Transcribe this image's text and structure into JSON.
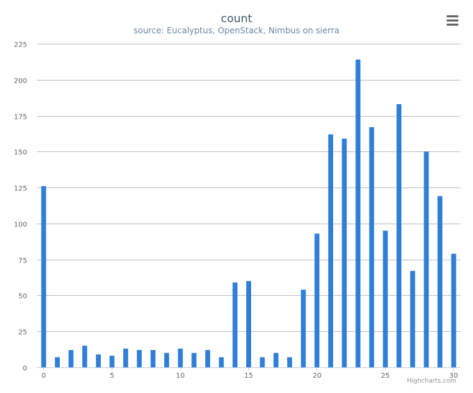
{
  "chart_data": {
    "type": "bar",
    "title": "count",
    "subtitle": "source: Eucalyptus, OpenStack, Nimbus on sierra",
    "xlabel": "",
    "ylabel": "",
    "categories": [
      0,
      1,
      2,
      3,
      4,
      5,
      6,
      7,
      8,
      9,
      10,
      11,
      12,
      13,
      14,
      15,
      16,
      17,
      18,
      19,
      20,
      21,
      22,
      23,
      24,
      25,
      26,
      27,
      28,
      29,
      30
    ],
    "values": [
      126,
      7,
      12,
      15,
      9,
      8,
      13,
      12,
      12,
      10,
      13,
      10,
      12,
      7,
      59,
      60,
      7,
      10,
      7,
      54,
      93,
      162,
      159,
      214,
      167,
      95,
      183,
      67,
      150,
      119,
      79
    ],
    "xticks": [
      0,
      5,
      10,
      15,
      20,
      25,
      30
    ],
    "yticks": [
      0,
      25,
      50,
      75,
      100,
      125,
      150,
      175,
      200,
      225
    ],
    "ylim": [
      0,
      225
    ],
    "grid": true,
    "bar_color": "#2f7ed8"
  },
  "credit": "Highcharts.com",
  "menu_icon": "menu-icon"
}
